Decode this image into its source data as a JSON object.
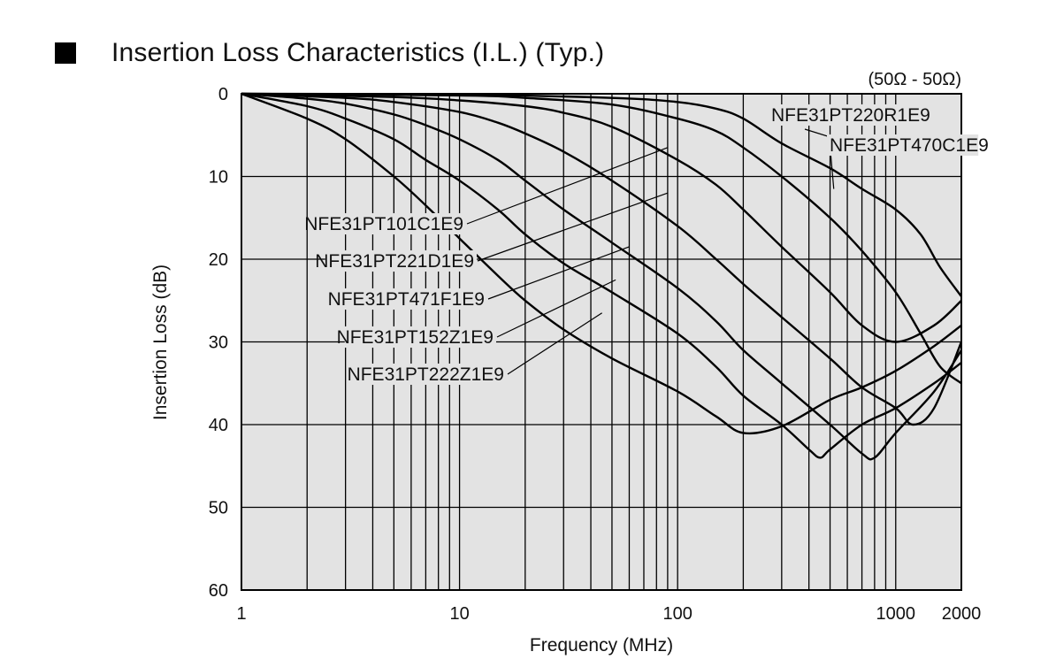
{
  "header": {
    "title": "Insertion Loss Characteristics (I.L.) (Typ.)"
  },
  "chart_data": {
    "type": "line",
    "title": "Insertion Loss Characteristics (I.L.) (Typ.)",
    "impedance_note": "(50Ω - 50Ω)",
    "xlabel": "Frequency (MHz)",
    "ylabel": "Insertion Loss (dB)",
    "xscale": "log",
    "xlim": [
      1,
      2000
    ],
    "ylim": [
      0,
      60
    ],
    "y_inverted": true,
    "grid": true,
    "x_ticks": [
      {
        "v": 1,
        "label": "1"
      },
      {
        "v": 10,
        "label": "10"
      },
      {
        "v": 100,
        "label": "100"
      },
      {
        "v": 1000,
        "label": "1000"
      },
      {
        "v": 2000,
        "label": "2000"
      }
    ],
    "y_ticks": [
      {
        "v": 0,
        "label": "0"
      },
      {
        "v": 10,
        "label": "10"
      },
      {
        "v": 20,
        "label": "20"
      },
      {
        "v": 30,
        "label": "30"
      },
      {
        "v": 40,
        "label": "40"
      },
      {
        "v": 50,
        "label": "50"
      },
      {
        "v": 60,
        "label": "60"
      }
    ],
    "series": [
      {
        "name": "NFE31PT222Z1E9",
        "points": [
          [
            1,
            0
          ],
          [
            2,
            3
          ],
          [
            3,
            5.5
          ],
          [
            5,
            10
          ],
          [
            7,
            13.5
          ],
          [
            10,
            17.5
          ],
          [
            15,
            22
          ],
          [
            20,
            25
          ],
          [
            30,
            28.5
          ],
          [
            50,
            32
          ],
          [
            100,
            36
          ],
          [
            150,
            39
          ],
          [
            200,
            41
          ],
          [
            300,
            40.2
          ],
          [
            500,
            37
          ],
          [
            700,
            35.5
          ],
          [
            1000,
            33.5
          ],
          [
            1500,
            30.5
          ],
          [
            2000,
            28
          ]
        ]
      },
      {
        "name": "NFE31PT152Z1E9",
        "points": [
          [
            1,
            0
          ],
          [
            2,
            1.5
          ],
          [
            3,
            3
          ],
          [
            5,
            5.5
          ],
          [
            7,
            8
          ],
          [
            10,
            10.5
          ],
          [
            15,
            14
          ],
          [
            20,
            17
          ],
          [
            30,
            20.5
          ],
          [
            50,
            24
          ],
          [
            100,
            29
          ],
          [
            150,
            33
          ],
          [
            200,
            36.5
          ],
          [
            300,
            40
          ],
          [
            400,
            43
          ],
          [
            450,
            44
          ],
          [
            500,
            43
          ],
          [
            700,
            40
          ],
          [
            1000,
            38
          ],
          [
            1500,
            35
          ],
          [
            2000,
            32.5
          ]
        ]
      },
      {
        "name": "NFE31PT471F1E9",
        "points": [
          [
            1,
            0
          ],
          [
            2,
            0.6
          ],
          [
            3,
            1.2
          ],
          [
            5,
            2.5
          ],
          [
            7,
            3.8
          ],
          [
            10,
            5.5
          ],
          [
            15,
            8
          ],
          [
            20,
            10.5
          ],
          [
            30,
            14
          ],
          [
            50,
            18
          ],
          [
            100,
            23.5
          ],
          [
            150,
            27.5
          ],
          [
            200,
            31
          ],
          [
            300,
            35
          ],
          [
            500,
            40
          ],
          [
            700,
            43.5
          ],
          [
            800,
            44
          ],
          [
            1000,
            41
          ],
          [
            1500,
            36
          ],
          [
            2000,
            31
          ]
        ]
      },
      {
        "name": "NFE31PT221D1E9",
        "points": [
          [
            1,
            0
          ],
          [
            3,
            0.5
          ],
          [
            5,
            1
          ],
          [
            10,
            2.2
          ],
          [
            15,
            3.5
          ],
          [
            20,
            4.8
          ],
          [
            30,
            7
          ],
          [
            50,
            10.5
          ],
          [
            100,
            16
          ],
          [
            150,
            20
          ],
          [
            200,
            23
          ],
          [
            300,
            27
          ],
          [
            500,
            32
          ],
          [
            700,
            35.5
          ],
          [
            1000,
            38
          ],
          [
            1200,
            40
          ],
          [
            1500,
            38
          ],
          [
            2000,
            30
          ]
        ]
      },
      {
        "name": "NFE31PT101C1E9",
        "points": [
          [
            1,
            0
          ],
          [
            5,
            0.4
          ],
          [
            10,
            0.8
          ],
          [
            20,
            1.5
          ],
          [
            30,
            2.3
          ],
          [
            50,
            4
          ],
          [
            100,
            8
          ],
          [
            150,
            11
          ],
          [
            200,
            14
          ],
          [
            300,
            18.5
          ],
          [
            500,
            24
          ],
          [
            700,
            28
          ],
          [
            1000,
            30
          ],
          [
            1500,
            28
          ],
          [
            2000,
            25
          ]
        ]
      },
      {
        "name": "NFE31PT470C1E9",
        "points": [
          [
            1,
            0
          ],
          [
            10,
            0.2
          ],
          [
            20,
            0.5
          ],
          [
            50,
            1.3
          ],
          [
            100,
            3
          ],
          [
            150,
            4.5
          ],
          [
            200,
            6.5
          ],
          [
            300,
            10
          ],
          [
            500,
            15
          ],
          [
            700,
            19
          ],
          [
            1000,
            24
          ],
          [
            1300,
            29
          ],
          [
            1600,
            33
          ],
          [
            2000,
            35
          ]
        ]
      },
      {
        "name": "NFE31PT220R1E9",
        "points": [
          [
            1,
            0
          ],
          [
            10,
            0.1
          ],
          [
            50,
            0.5
          ],
          [
            100,
            1
          ],
          [
            150,
            1.8
          ],
          [
            200,
            3
          ],
          [
            300,
            6
          ],
          [
            500,
            9
          ],
          [
            700,
            11.5
          ],
          [
            1000,
            14
          ],
          [
            1300,
            17
          ],
          [
            1600,
            21
          ],
          [
            2000,
            24.5
          ]
        ]
      }
    ],
    "labels": [
      {
        "text": "NFE31PT220R1E9",
        "series": "NFE31PT220R1E9",
        "anchor_f": 620,
        "anchor_db": 6
      },
      {
        "text": "NFE31PT470C1E9",
        "series": "NFE31PT470C1E9",
        "anchor_f": 520,
        "anchor_db": 11.5
      },
      {
        "text": "NFE31PT101C1E9",
        "series": "NFE31PT101C1E9",
        "anchor_f": 90,
        "anchor_db": 6.5
      },
      {
        "text": "NFE31PT221D1E9",
        "series": "NFE31PT221D1E9",
        "anchor_f": 90,
        "anchor_db": 12
      },
      {
        "text": "NFE31PT471F1E9",
        "series": "NFE31PT471F1E9",
        "anchor_f": 60,
        "anchor_db": 18.5
      },
      {
        "text": "NFE31PT152Z1E9",
        "series": "NFE31PT152Z1E9",
        "anchor_f": 52,
        "anchor_db": 22.5
      },
      {
        "text": "NFE31PT222Z1E9",
        "series": "NFE31PT222Z1E9",
        "anchor_f": 45,
        "anchor_db": 26.5
      }
    ]
  }
}
